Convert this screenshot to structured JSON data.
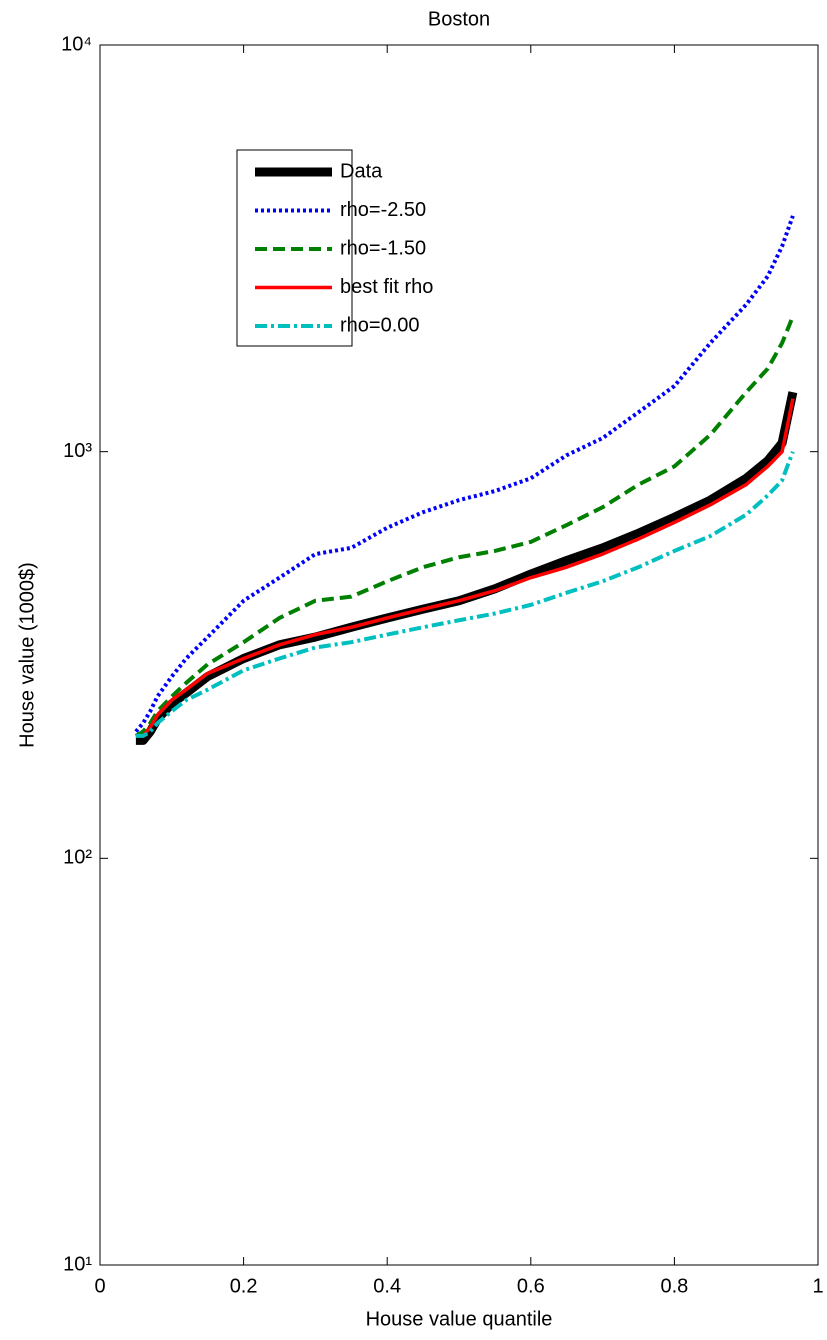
{
  "chart_data": {
    "type": "line",
    "title": "Boston",
    "x_label": "House value quantile",
    "y_label": "House value (1000$)",
    "log_y": true,
    "legend": "upper left",
    "x": [
      0.05,
      0.06,
      0.07,
      0.08,
      0.1,
      0.12,
      0.15,
      0.2,
      0.25,
      0.3,
      0.35,
      0.4,
      0.45,
      0.5,
      0.55,
      0.6,
      0.65,
      0.7,
      0.75,
      0.8,
      0.85,
      0.9,
      0.93,
      0.95,
      0.965
    ],
    "series": [
      {
        "name": "Data",
        "color": "#000000",
        "values": [
          195,
          195,
          205,
          220,
          240,
          255,
          280,
          310,
          335,
          350,
          370,
          390,
          410,
          430,
          460,
          500,
          540,
          580,
          630,
          690,
          760,
          860,
          950,
          1050,
          1400
        ]
      },
      {
        "name": "rho=-2.50",
        "color": "#0000ff",
        "values": [
          205,
          215,
          230,
          250,
          280,
          310,
          350,
          430,
          490,
          560,
          580,
          650,
          710,
          760,
          800,
          860,
          980,
          1080,
          1250,
          1450,
          1850,
          2300,
          2700,
          3200,
          3800
        ]
      },
      {
        "name": "rho=-1.50",
        "color": "#008000",
        "values": [
          200,
          205,
          215,
          230,
          250,
          270,
          300,
          340,
          390,
          430,
          440,
          480,
          520,
          550,
          570,
          600,
          660,
          730,
          830,
          920,
          1100,
          1400,
          1600,
          1850,
          2150
        ]
      },
      {
        "name": "best fit rho",
        "color": "#ff0000",
        "values": [
          200,
          200,
          210,
          225,
          245,
          260,
          285,
          310,
          335,
          355,
          370,
          390,
          410,
          430,
          455,
          490,
          520,
          560,
          610,
          670,
          740,
          830,
          920,
          1000,
          1350
        ]
      },
      {
        "name": "rho=0.00",
        "color": "#00bfbf",
        "values": [
          200,
          200,
          205,
          215,
          230,
          245,
          260,
          290,
          310,
          330,
          340,
          355,
          370,
          385,
          400,
          420,
          450,
          480,
          520,
          570,
          620,
          700,
          780,
          850,
          1000
        ]
      }
    ],
    "xlim": [
      0,
      1
    ],
    "xticks": [
      0,
      0.2,
      0.4,
      0.6,
      0.8,
      1
    ],
    "ylim": [
      10,
      10000
    ],
    "yticks": [
      {
        "value": 10,
        "label": "10¹"
      },
      {
        "value": 100,
        "label": "10²"
      },
      {
        "value": 1000,
        "label": "10³"
      },
      {
        "value": 10000,
        "label": "10⁴"
      }
    ]
  }
}
